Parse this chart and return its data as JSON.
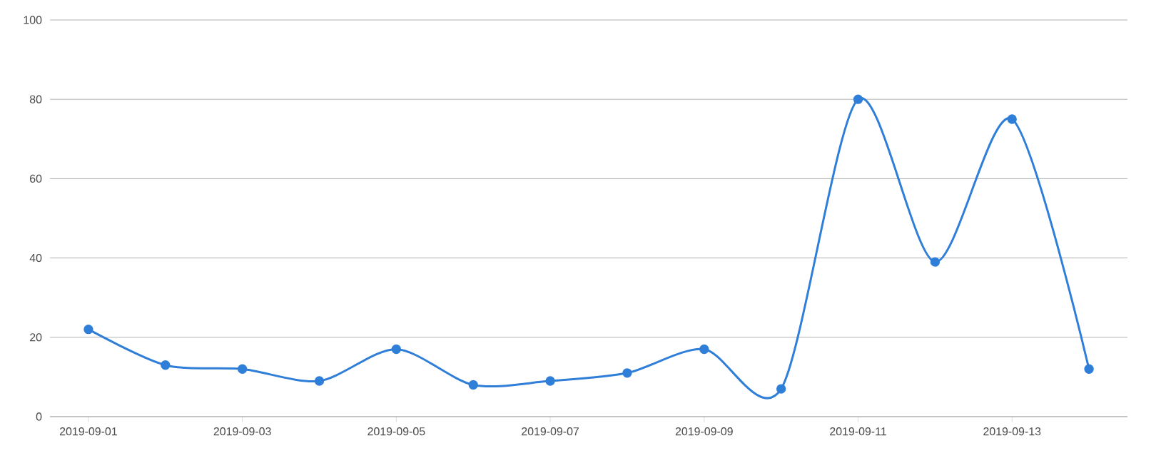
{
  "chart_data": {
    "type": "line",
    "categories": [
      "2019-09-01",
      null,
      "2019-09-03",
      null,
      "2019-09-05",
      null,
      "2019-09-07",
      null,
      "2019-09-09",
      null,
      "2019-09-11",
      null,
      "2019-09-13",
      null
    ],
    "series": [
      {
        "color": "#2f7ed8",
        "values": [
          22,
          13,
          12,
          9,
          17,
          8,
          9,
          11,
          17,
          7,
          80,
          39,
          75,
          12
        ]
      }
    ],
    "ylim": [
      0,
      100
    ],
    "yticks": [
      0,
      20,
      40,
      60,
      80,
      100
    ],
    "grid": "y",
    "marker": "circle",
    "line_style": "solid"
  }
}
